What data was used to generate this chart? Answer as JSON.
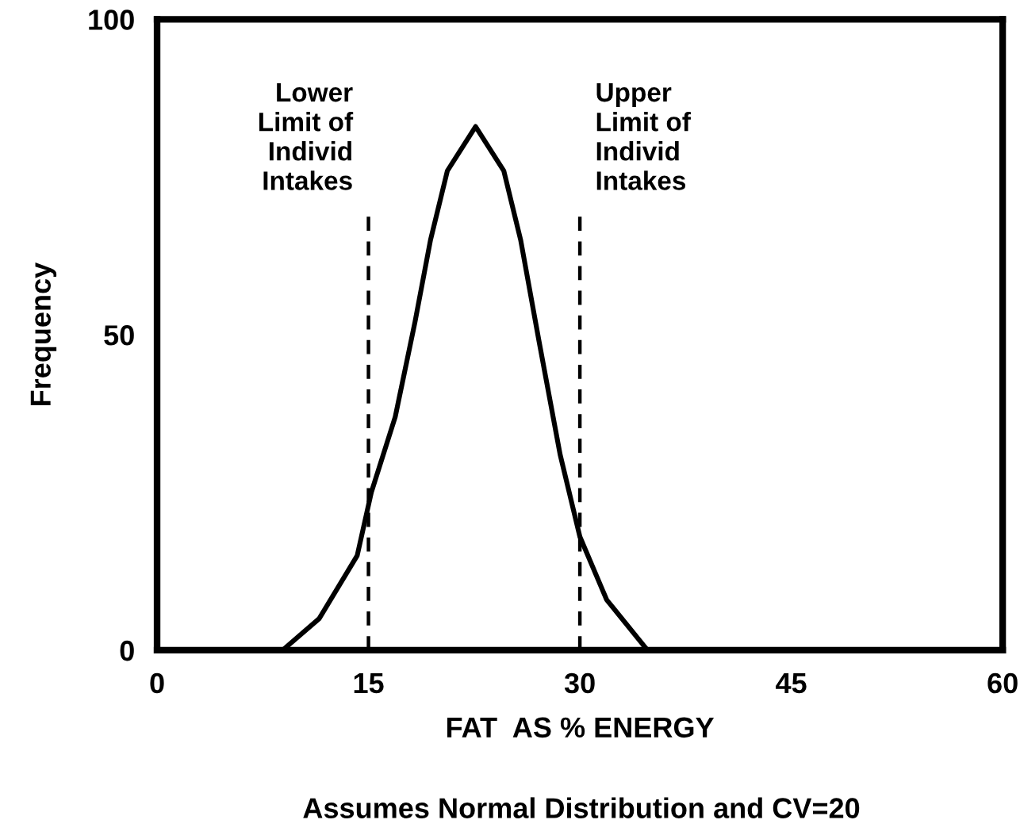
{
  "chart_data": {
    "type": "line",
    "xlabel": "FAT  AS % ENERGY",
    "ylabel": "Frequency",
    "annotations": [
      "Assumes Normal Distribution and CV=20"
    ],
    "series": [
      {
        "color": "#000000",
        "x": [
          8.9,
          11.5,
          14.2,
          15.2,
          16.9,
          18.3,
          19.4,
          20.6,
          22.6,
          24.6,
          25.8,
          27.1,
          28.6,
          30.0,
          31.9,
          34.8
        ],
        "values": [
          0,
          5,
          15,
          25,
          37,
          52,
          65,
          76,
          83,
          76,
          65,
          49,
          31,
          18,
          8,
          0
        ]
      }
    ],
    "ref_lines": [
      {
        "axis": "x",
        "value": 15,
        "label": "Lower\nLimit of\nIndivid\nIntakes",
        "color": "#000000",
        "line_style": "dashed"
      },
      {
        "axis": "x",
        "value": 30,
        "label": "Upper\nLimit of\nIndivid\nIntakes",
        "color": "#000000",
        "line_style": "dashed"
      }
    ],
    "xlim": [
      0,
      60
    ],
    "xticks": [
      0,
      15,
      30,
      45,
      60
    ],
    "ylim": [
      0,
      100
    ],
    "yticks": [
      0,
      50,
      100
    ],
    "grid": false,
    "legend": false,
    "marker": "none",
    "line_style": "solid"
  }
}
